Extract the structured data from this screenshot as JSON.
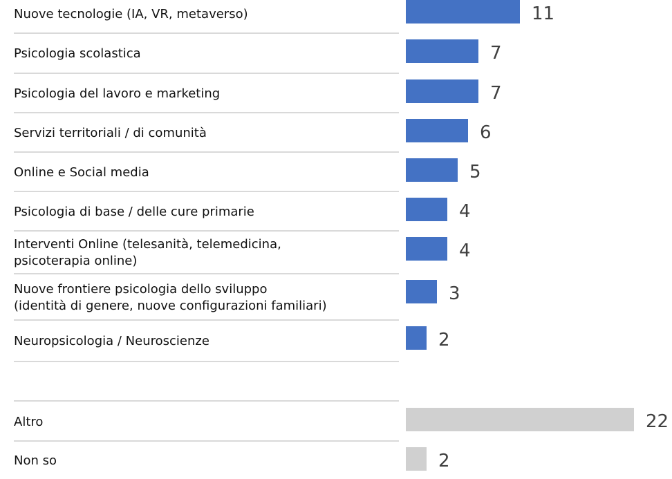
{
  "chart_data": [
    {
      "type": "bar",
      "color": "#4472c4",
      "categories": [
        "Nuove tecnologie (IA, VR, metaverso)",
        "Psicologia scolastica",
        "Psicologia del lavoro e marketing",
        "Servizi territoriali / di comunità",
        "Online e Social media",
        "Psicologia di base / delle cure primarie",
        "Interventi Online (telesanità, telemedicina,\npsicoterapia online)",
        "Nuove frontiere psicologia dello sviluppo\n(identità di genere, nuove configurazioni familiari)",
        "Neuropsicologia / Neuroscienze"
      ],
      "values": [
        11,
        7,
        7,
        6,
        5,
        4,
        4,
        3,
        2
      ]
    },
    {
      "type": "bar",
      "color": "#d0d0d0",
      "categories": [
        "Altro",
        "Non so"
      ],
      "values": [
        22,
        2
      ]
    }
  ]
}
